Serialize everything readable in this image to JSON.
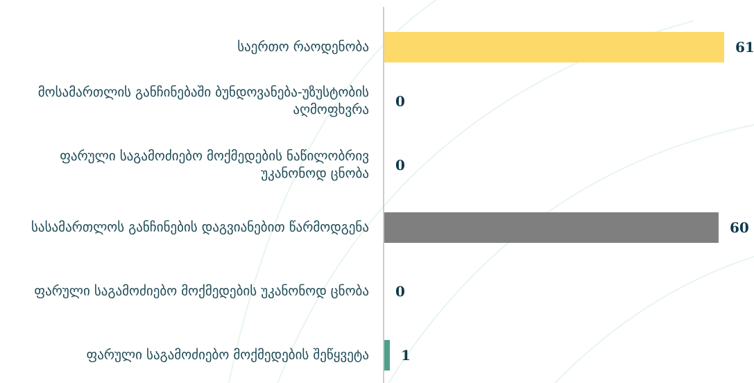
{
  "chart_data": {
    "type": "bar",
    "orientation": "horizontal",
    "categories": [
      "საერთო რაოდენობა",
      "მოსამართლის განჩინებაში ბუნდოვანება-უზუსტობის აღმოფხვრა",
      "ფარული საგამოძიებო მოქმედების ნაწილობრივ უკანონოდ ცნობა",
      "სასამართლოს განჩინების დაგვიანებით წარმოდგენა",
      "ფარული საგამოძიებო მოქმედების უკანონოდ ცნობა",
      "ფარული საგამოძიებო მოქმედების შეწყვეტა"
    ],
    "values": [
      61,
      0,
      0,
      60,
      0,
      1
    ],
    "value_labels": [
      "61",
      "0",
      "0",
      "60",
      "0",
      "1"
    ],
    "bar_colors": [
      "#fdd96a",
      "#7f7f7f",
      "#7f7f7f",
      "#7f7f7f",
      "#7f7f7f",
      "#4fa08a"
    ],
    "xlim": [
      0,
      61
    ],
    "grid": false,
    "legend": "none"
  },
  "colors": {
    "axis": "#cccccc",
    "label_text": "#1d4a55",
    "value_text": "#0f3a4a",
    "background_arcs": "#e6f4ee"
  }
}
